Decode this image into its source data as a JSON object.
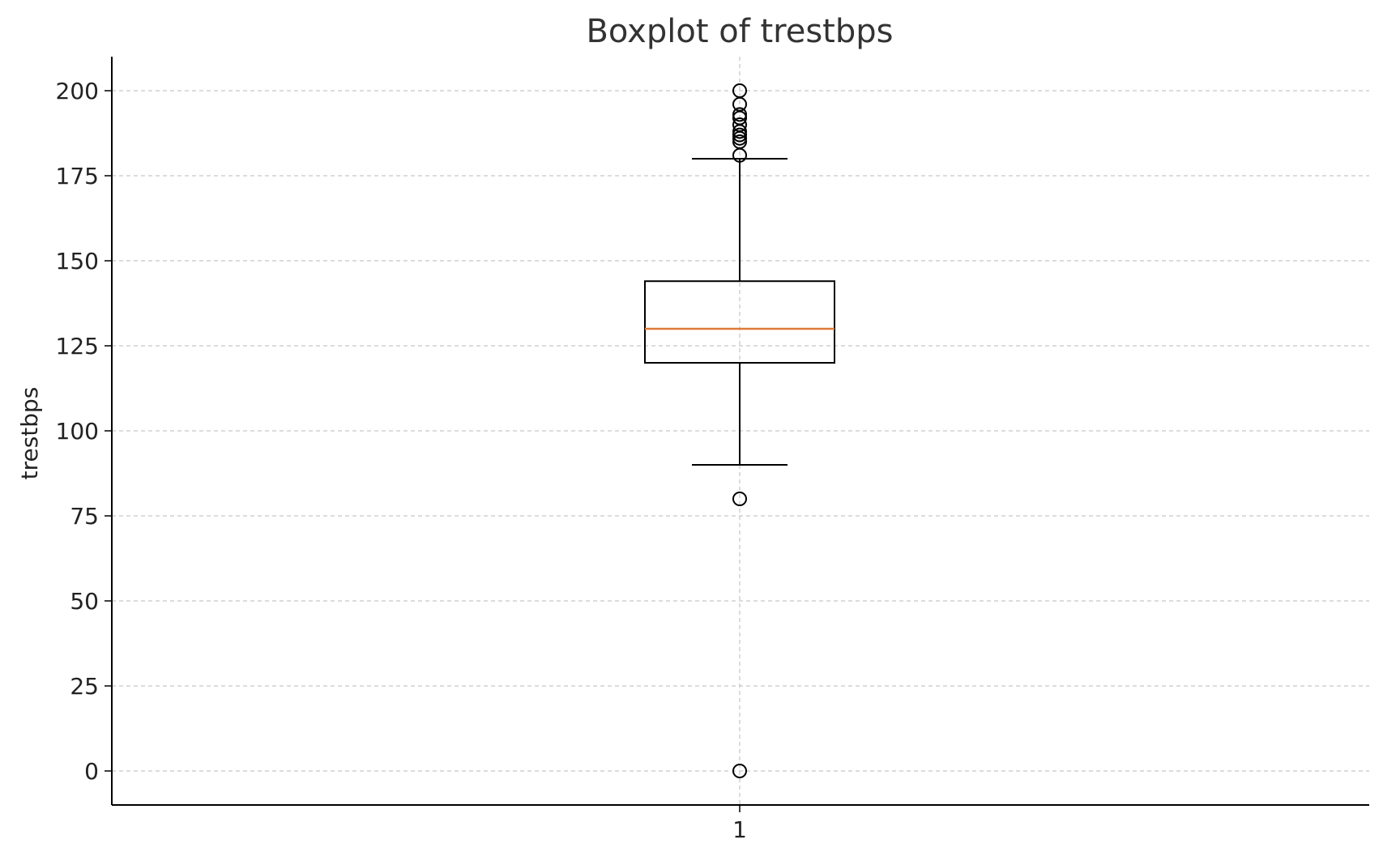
{
  "chart_data": {
    "type": "boxplot",
    "title": "Boxplot of trestbps",
    "xlabel": "",
    "ylabel": "trestbps",
    "categories": [
      "1"
    ],
    "ylim": [
      -10,
      210
    ],
    "yticks": [
      "0",
      "25",
      "50",
      "75",
      "100",
      "125",
      "150",
      "175",
      "200"
    ],
    "grid": true,
    "box": {
      "whisker_low": 90,
      "q1": 120,
      "median": 130,
      "q3": 144,
      "whisker_high": 180
    },
    "outliers": [
      0,
      80,
      181,
      185,
      186,
      187,
      188,
      190,
      192,
      193,
      196,
      200
    ],
    "colors": {
      "box": "#000000",
      "median": "#e07b39",
      "grid": "#c8c8c8",
      "axis": "#000000"
    }
  }
}
